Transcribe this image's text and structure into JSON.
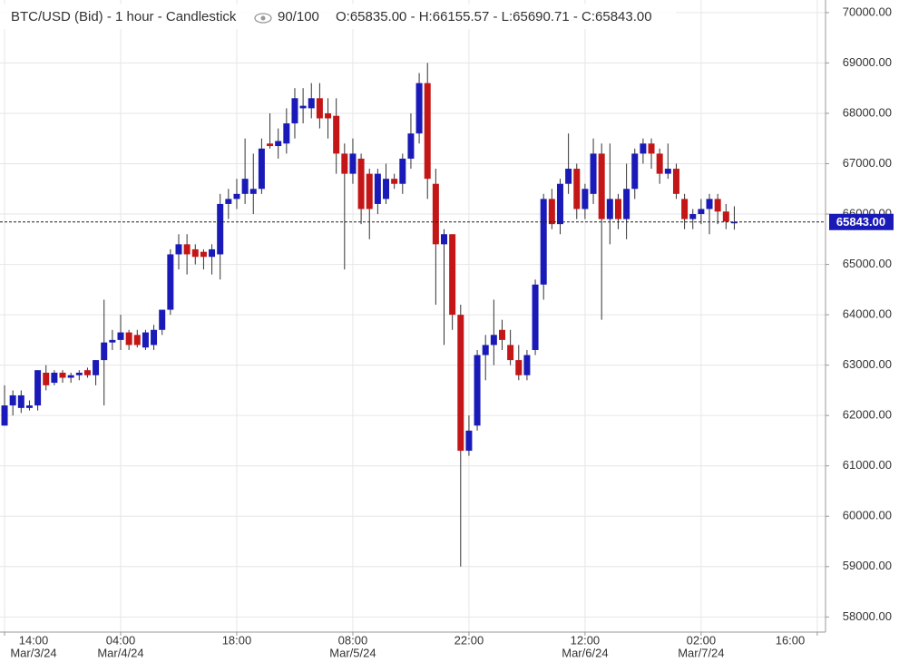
{
  "chart_data": {
    "type": "candlestick",
    "title": "BTC/USD (Bid) - 1 hour - Candlestick",
    "zoom_label": "90/100",
    "ohlc_text": "O:65835.00 - H:66155.57 - L:65690.71 - C:65843.00",
    "x": [
      0,
      1,
      2,
      3,
      4,
      5,
      6,
      7,
      8,
      9,
      10,
      11,
      12,
      13,
      14,
      15,
      16,
      17,
      18,
      19,
      20,
      21,
      22,
      23,
      24,
      25,
      26,
      27,
      28,
      29,
      30,
      31,
      32,
      33,
      34,
      35,
      36,
      37,
      38,
      39,
      40,
      41,
      42,
      43,
      44,
      45,
      46,
      47,
      48,
      49,
      50,
      51,
      52,
      53,
      54,
      55,
      56,
      57,
      58,
      59,
      60,
      61,
      62,
      63,
      64,
      65,
      66,
      67,
      68,
      69,
      70,
      71,
      72,
      73,
      74,
      75,
      76,
      77,
      78,
      79,
      80,
      81,
      82,
      83,
      84,
      85,
      86,
      87,
      88
    ],
    "open": [
      61800,
      62200,
      62150,
      62150,
      62200,
      62850,
      62650,
      62850,
      62750,
      62800,
      62900,
      62800,
      63100,
      63450,
      63500,
      63650,
      63600,
      63350,
      63400,
      63700,
      64100,
      65200,
      65400,
      65300,
      65250,
      65150,
      65200,
      66200,
      66300,
      66400,
      66400,
      66500,
      67400,
      67350,
      67400,
      67800,
      68100,
      68100,
      68300,
      68000,
      67950,
      67200,
      66800,
      67100,
      66800,
      66200,
      66300,
      66700,
      66600,
      67100,
      67600,
      68600,
      66600,
      65400,
      65600,
      64000,
      61300,
      61800,
      63200,
      63400,
      63700,
      63400,
      63100,
      62800,
      63300,
      64600,
      66300,
      65800,
      66600,
      66900,
      66100,
      66400,
      67200,
      65900,
      66300,
      65900,
      66500,
      67200,
      67400,
      67200,
      66800,
      66900,
      66300,
      65900,
      66000,
      66100,
      66300,
      66050,
      65835
    ],
    "high": [
      62600,
      62500,
      62500,
      62300,
      62900,
      63000,
      62900,
      62900,
      62850,
      62900,
      62950,
      63100,
      64300,
      63700,
      64000,
      63700,
      63700,
      63700,
      63800,
      64100,
      65300,
      65600,
      65600,
      65400,
      65300,
      65400,
      66400,
      66500,
      66700,
      67500,
      67200,
      67500,
      68000,
      67700,
      68100,
      68500,
      68500,
      68600,
      68600,
      68300,
      68300,
      67400,
      67500,
      67200,
      66900,
      66900,
      67000,
      66800,
      67200,
      68000,
      68800,
      69000,
      66900,
      65700,
      65600,
      64200,
      62000,
      63300,
      63600,
      64300,
      63900,
      63700,
      63400,
      63300,
      64700,
      66400,
      66500,
      66700,
      67600,
      67000,
      66600,
      67500,
      67400,
      67400,
      66400,
      67000,
      67300,
      67500,
      67500,
      67300,
      67400,
      67000,
      66400,
      66100,
      66300,
      66400,
      66400,
      66200,
      66155.57
    ],
    "low": [
      61800,
      62000,
      62050,
      62100,
      62100,
      62500,
      62600,
      62650,
      62650,
      62700,
      62750,
      62600,
      62200,
      63300,
      63300,
      63300,
      63350,
      63300,
      63300,
      63600,
      64000,
      64900,
      64800,
      65000,
      64900,
      64800,
      64700,
      65900,
      66100,
      66200,
      66000,
      66400,
      67300,
      67100,
      67200,
      67500,
      67800,
      67900,
      67700,
      67500,
      66800,
      64900,
      66600,
      65800,
      65500,
      66000,
      66200,
      66500,
      66400,
      66900,
      67400,
      66300,
      64200,
      63400,
      63700,
      59000,
      61200,
      61700,
      62700,
      63000,
      63300,
      63000,
      62700,
      62700,
      63200,
      64300,
      65700,
      65600,
      66400,
      65900,
      65900,
      66200,
      63900,
      65400,
      65700,
      65500,
      66300,
      67000,
      66900,
      66600,
      66700,
      66300,
      65700,
      65700,
      65800,
      65600,
      65800,
      65700,
      65690.71
    ],
    "close": [
      62200,
      62400,
      62400,
      62200,
      62900,
      62600,
      62850,
      62750,
      62800,
      62850,
      62800,
      63100,
      63450,
      63500,
      63650,
      63400,
      63400,
      63650,
      63700,
      64100,
      65200,
      65400,
      65200,
      65150,
      65150,
      65300,
      66200,
      66300,
      66400,
      66700,
      66500,
      67300,
      67350,
      67450,
      67800,
      68300,
      68150,
      68300,
      67900,
      67900,
      67200,
      66800,
      67200,
      66100,
      66100,
      66800,
      66700,
      66600,
      67100,
      67600,
      68600,
      66700,
      65400,
      65600,
      64000,
      61300,
      61700,
      63200,
      63400,
      63600,
      63500,
      63100,
      62800,
      63200,
      64600,
      66300,
      65800,
      66600,
      66900,
      66100,
      66500,
      67200,
      65900,
      66300,
      65900,
      66500,
      67200,
      67400,
      67200,
      66800,
      66900,
      66400,
      65900,
      66000,
      66100,
      66300,
      66050,
      65850,
      65843
    ],
    "up_color": "#1a1ab8",
    "down_color": "#c41616",
    "last_price": 65843,
    "last_price_label": "65843.00",
    "xlim": [
      -0.55,
      99.0
    ],
    "ylim": [
      57700,
      70250
    ],
    "xticks": [
      {
        "value": 0,
        "label": "14:00"
      },
      {
        "value": 14,
        "label": "04:00"
      },
      {
        "value": 28,
        "label": "18:00"
      },
      {
        "value": 42,
        "label": "08:00"
      },
      {
        "value": 56,
        "label": "22:00"
      },
      {
        "value": 70,
        "label": "12:00"
      },
      {
        "value": 84,
        "label": "02:00"
      },
      {
        "value": 98,
        "label": "16:00"
      }
    ],
    "xtick_dates": [
      {
        "value": 0,
        "label": "Mar/3/24"
      },
      {
        "value": 14,
        "label": "Mar/4/24"
      },
      {
        "value": 42,
        "label": "Mar/5/24"
      },
      {
        "value": 70,
        "label": "Mar/6/24"
      },
      {
        "value": 84,
        "label": "Mar/7/24"
      }
    ],
    "yticks": [
      {
        "value": 58000,
        "label": "58000.00"
      },
      {
        "value": 59000,
        "label": "59000.00"
      },
      {
        "value": 60000,
        "label": "60000.00"
      },
      {
        "value": 61000,
        "label": "61000.00"
      },
      {
        "value": 62000,
        "label": "62000.00"
      },
      {
        "value": 63000,
        "label": "63000.00"
      },
      {
        "value": 64000,
        "label": "64000.00"
      },
      {
        "value": 65000,
        "label": "65000.00"
      },
      {
        "value": 66000,
        "label": "66000.00"
      },
      {
        "value": 67000,
        "label": "67000.00"
      },
      {
        "value": 68000,
        "label": "68000.00"
      },
      {
        "value": 69000,
        "label": "69000.00"
      },
      {
        "value": 70000,
        "label": "70000.00"
      }
    ],
    "grid": true
  }
}
